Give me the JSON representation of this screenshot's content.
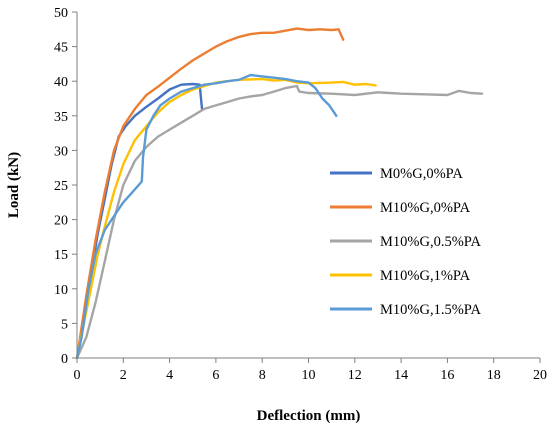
{
  "chart_data": {
    "type": "line",
    "xlabel": "Deflection (mm)",
    "ylabel": "Load (kN)",
    "xlim": [
      0,
      20
    ],
    "ylim": [
      0,
      50
    ],
    "x_ticks": [
      0,
      2,
      4,
      6,
      8,
      10,
      12,
      14,
      16,
      18,
      20
    ],
    "y_ticks": [
      0,
      5,
      10,
      15,
      20,
      25,
      30,
      35,
      40,
      45,
      50
    ],
    "grid": false,
    "legend_position": "right",
    "series": [
      {
        "name": "M0%G,0%PA",
        "color": "#4472C4",
        "points": [
          [
            0,
            0
          ],
          [
            0.3,
            5
          ],
          [
            0.6,
            12
          ],
          [
            0.9,
            18
          ],
          [
            1.2,
            23
          ],
          [
            1.5,
            28
          ],
          [
            1.8,
            32
          ],
          [
            2.1,
            33.5
          ],
          [
            2.5,
            35
          ],
          [
            3,
            36.3
          ],
          [
            3.5,
            37.5
          ],
          [
            4,
            38.8
          ],
          [
            4.5,
            39.5
          ],
          [
            5,
            39.6
          ],
          [
            5.3,
            39.5
          ],
          [
            5.4,
            36
          ]
        ]
      },
      {
        "name": "M10%G,0%PA",
        "color": "#ED7D31",
        "points": [
          [
            0,
            0
          ],
          [
            0.4,
            9
          ],
          [
            0.8,
            17
          ],
          [
            1.2,
            24
          ],
          [
            1.6,
            30
          ],
          [
            2,
            33.5
          ],
          [
            2.5,
            36
          ],
          [
            3,
            38
          ],
          [
            3.5,
            39.2
          ],
          [
            4,
            40.5
          ],
          [
            4.5,
            41.8
          ],
          [
            5,
            43
          ],
          [
            5.5,
            44
          ],
          [
            6,
            45
          ],
          [
            6.5,
            45.8
          ],
          [
            7,
            46.4
          ],
          [
            7.5,
            46.8
          ],
          [
            8,
            47
          ],
          [
            8.5,
            47
          ],
          [
            9,
            47.3
          ],
          [
            9.5,
            47.6
          ],
          [
            10,
            47.4
          ],
          [
            10.5,
            47.5
          ],
          [
            11,
            47.4
          ],
          [
            11.3,
            47.5
          ],
          [
            11.5,
            46
          ]
        ]
      },
      {
        "name": "M10%G,0.5%PA",
        "color": "#A5A5A5",
        "points": [
          [
            0,
            0
          ],
          [
            0.4,
            3
          ],
          [
            0.8,
            8
          ],
          [
            1.2,
            14
          ],
          [
            1.6,
            20
          ],
          [
            2,
            25
          ],
          [
            2.5,
            28.5
          ],
          [
            3,
            30.5
          ],
          [
            3.5,
            32
          ],
          [
            4,
            33
          ],
          [
            4.5,
            34
          ],
          [
            5,
            35
          ],
          [
            5.5,
            36
          ],
          [
            6,
            36.5
          ],
          [
            6.5,
            37
          ],
          [
            7,
            37.5
          ],
          [
            7.5,
            37.8
          ],
          [
            8,
            38
          ],
          [
            8.5,
            38.5
          ],
          [
            9,
            39
          ],
          [
            9.5,
            39.3
          ],
          [
            9.6,
            38.5
          ],
          [
            10,
            38.3
          ],
          [
            11,
            38.2
          ],
          [
            12,
            38
          ],
          [
            13,
            38.4
          ],
          [
            14,
            38.2
          ],
          [
            15,
            38.1
          ],
          [
            16,
            38
          ],
          [
            16.5,
            38.6
          ],
          [
            17,
            38.3
          ],
          [
            17.5,
            38.2
          ]
        ]
      },
      {
        "name": "M10%G,1%PA",
        "color": "#FFC000",
        "points": [
          [
            0,
            0
          ],
          [
            0.3,
            5
          ],
          [
            0.6,
            10
          ],
          [
            0.9,
            15
          ],
          [
            1.2,
            19
          ],
          [
            1.6,
            24
          ],
          [
            2,
            28
          ],
          [
            2.5,
            31.5
          ],
          [
            3,
            33.5
          ],
          [
            3.5,
            35.5
          ],
          [
            4,
            37
          ],
          [
            4.5,
            38
          ],
          [
            5,
            38.8
          ],
          [
            5.5,
            39.3
          ],
          [
            6,
            39.8
          ],
          [
            7,
            40.2
          ],
          [
            8,
            40.3
          ],
          [
            8.5,
            40.1
          ],
          [
            9,
            40.2
          ],
          [
            9.5,
            39.8
          ],
          [
            10,
            39.7
          ],
          [
            11,
            39.8
          ],
          [
            11.5,
            39.9
          ],
          [
            12,
            39.5
          ],
          [
            12.5,
            39.6
          ],
          [
            12.9,
            39.4
          ]
        ]
      },
      {
        "name": "M10%G,1.5%PA",
        "color": "#5B9BD5",
        "points": [
          [
            0,
            0
          ],
          [
            0.2,
            3
          ],
          [
            0.5,
            10
          ],
          [
            0.8,
            15
          ],
          [
            1.2,
            18.5
          ],
          [
            1.6,
            20.5
          ],
          [
            2,
            22.5
          ],
          [
            2.4,
            24
          ],
          [
            2.8,
            25.5
          ],
          [
            2.85,
            29
          ],
          [
            3,
            33
          ],
          [
            3.3,
            35
          ],
          [
            3.6,
            36.5
          ],
          [
            4,
            37.5
          ],
          [
            4.5,
            38.5
          ],
          [
            5,
            39
          ],
          [
            5.5,
            39.5
          ],
          [
            6,
            39.7
          ],
          [
            6.5,
            40
          ],
          [
            7,
            40.2
          ],
          [
            7.5,
            40.9
          ],
          [
            8,
            40.7
          ],
          [
            8.5,
            40.5
          ],
          [
            9,
            40.3
          ],
          [
            9.5,
            40
          ],
          [
            10,
            39.8
          ],
          [
            10.3,
            39
          ],
          [
            10.6,
            37.5
          ],
          [
            10.9,
            36.5
          ],
          [
            11.1,
            35.5
          ],
          [
            11.2,
            35
          ]
        ]
      }
    ]
  }
}
